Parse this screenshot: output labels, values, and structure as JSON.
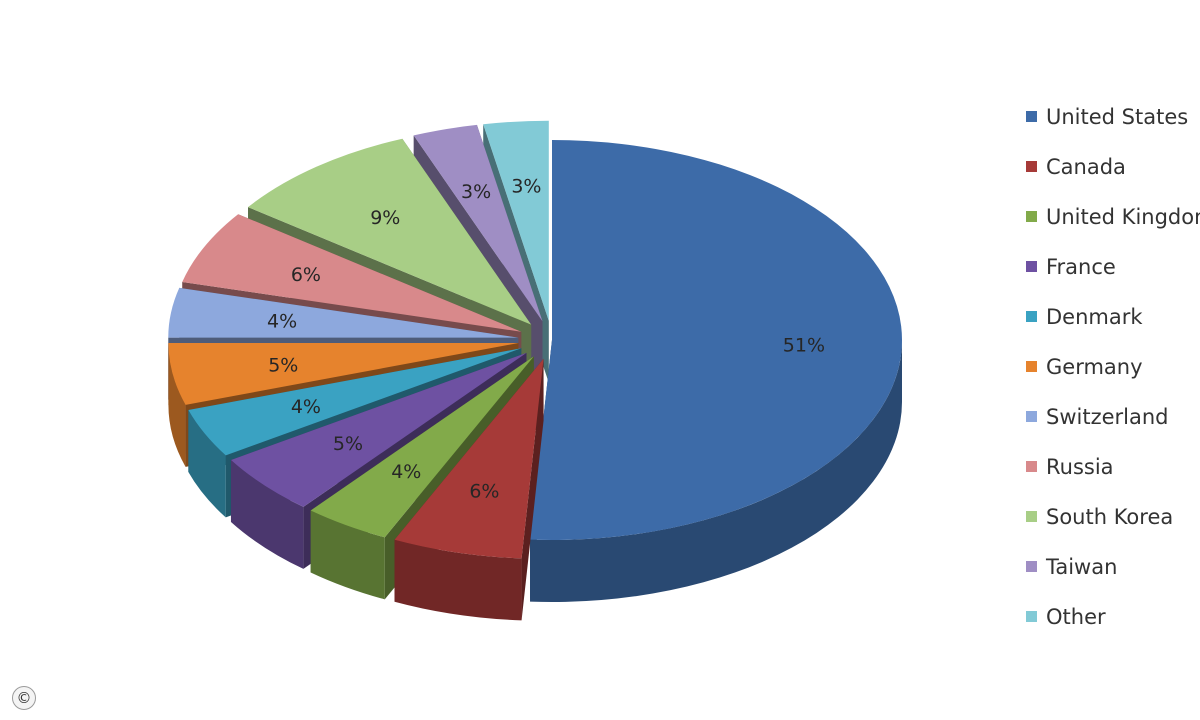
{
  "chart_data": {
    "type": "pie",
    "style": "3d-exploded",
    "categories": [
      "United States",
      "Canada",
      "United Kingdom",
      "France",
      "Denmark",
      "Germany",
      "Switzerland",
      "Russia",
      "South Korea",
      "Taiwan",
      "Other"
    ],
    "values": [
      51,
      6,
      4,
      5,
      4,
      5,
      4,
      6,
      9,
      3,
      3
    ],
    "unit": "%",
    "data_labels": [
      "51%",
      "6%",
      "4%",
      "5%",
      "4%",
      "5%",
      "4%",
      "6%",
      "9%",
      "3%",
      "3%"
    ],
    "colors": [
      "#3d6ba8",
      "#a63a38",
      "#82aa4a",
      "#6e51a2",
      "#3aa2c2",
      "#e6832d",
      "#8da8dd",
      "#d8898b",
      "#a8ce86",
      "#9f8ec4",
      "#82cad6"
    ],
    "legend_position": "right"
  },
  "copyright_symbol": "©"
}
